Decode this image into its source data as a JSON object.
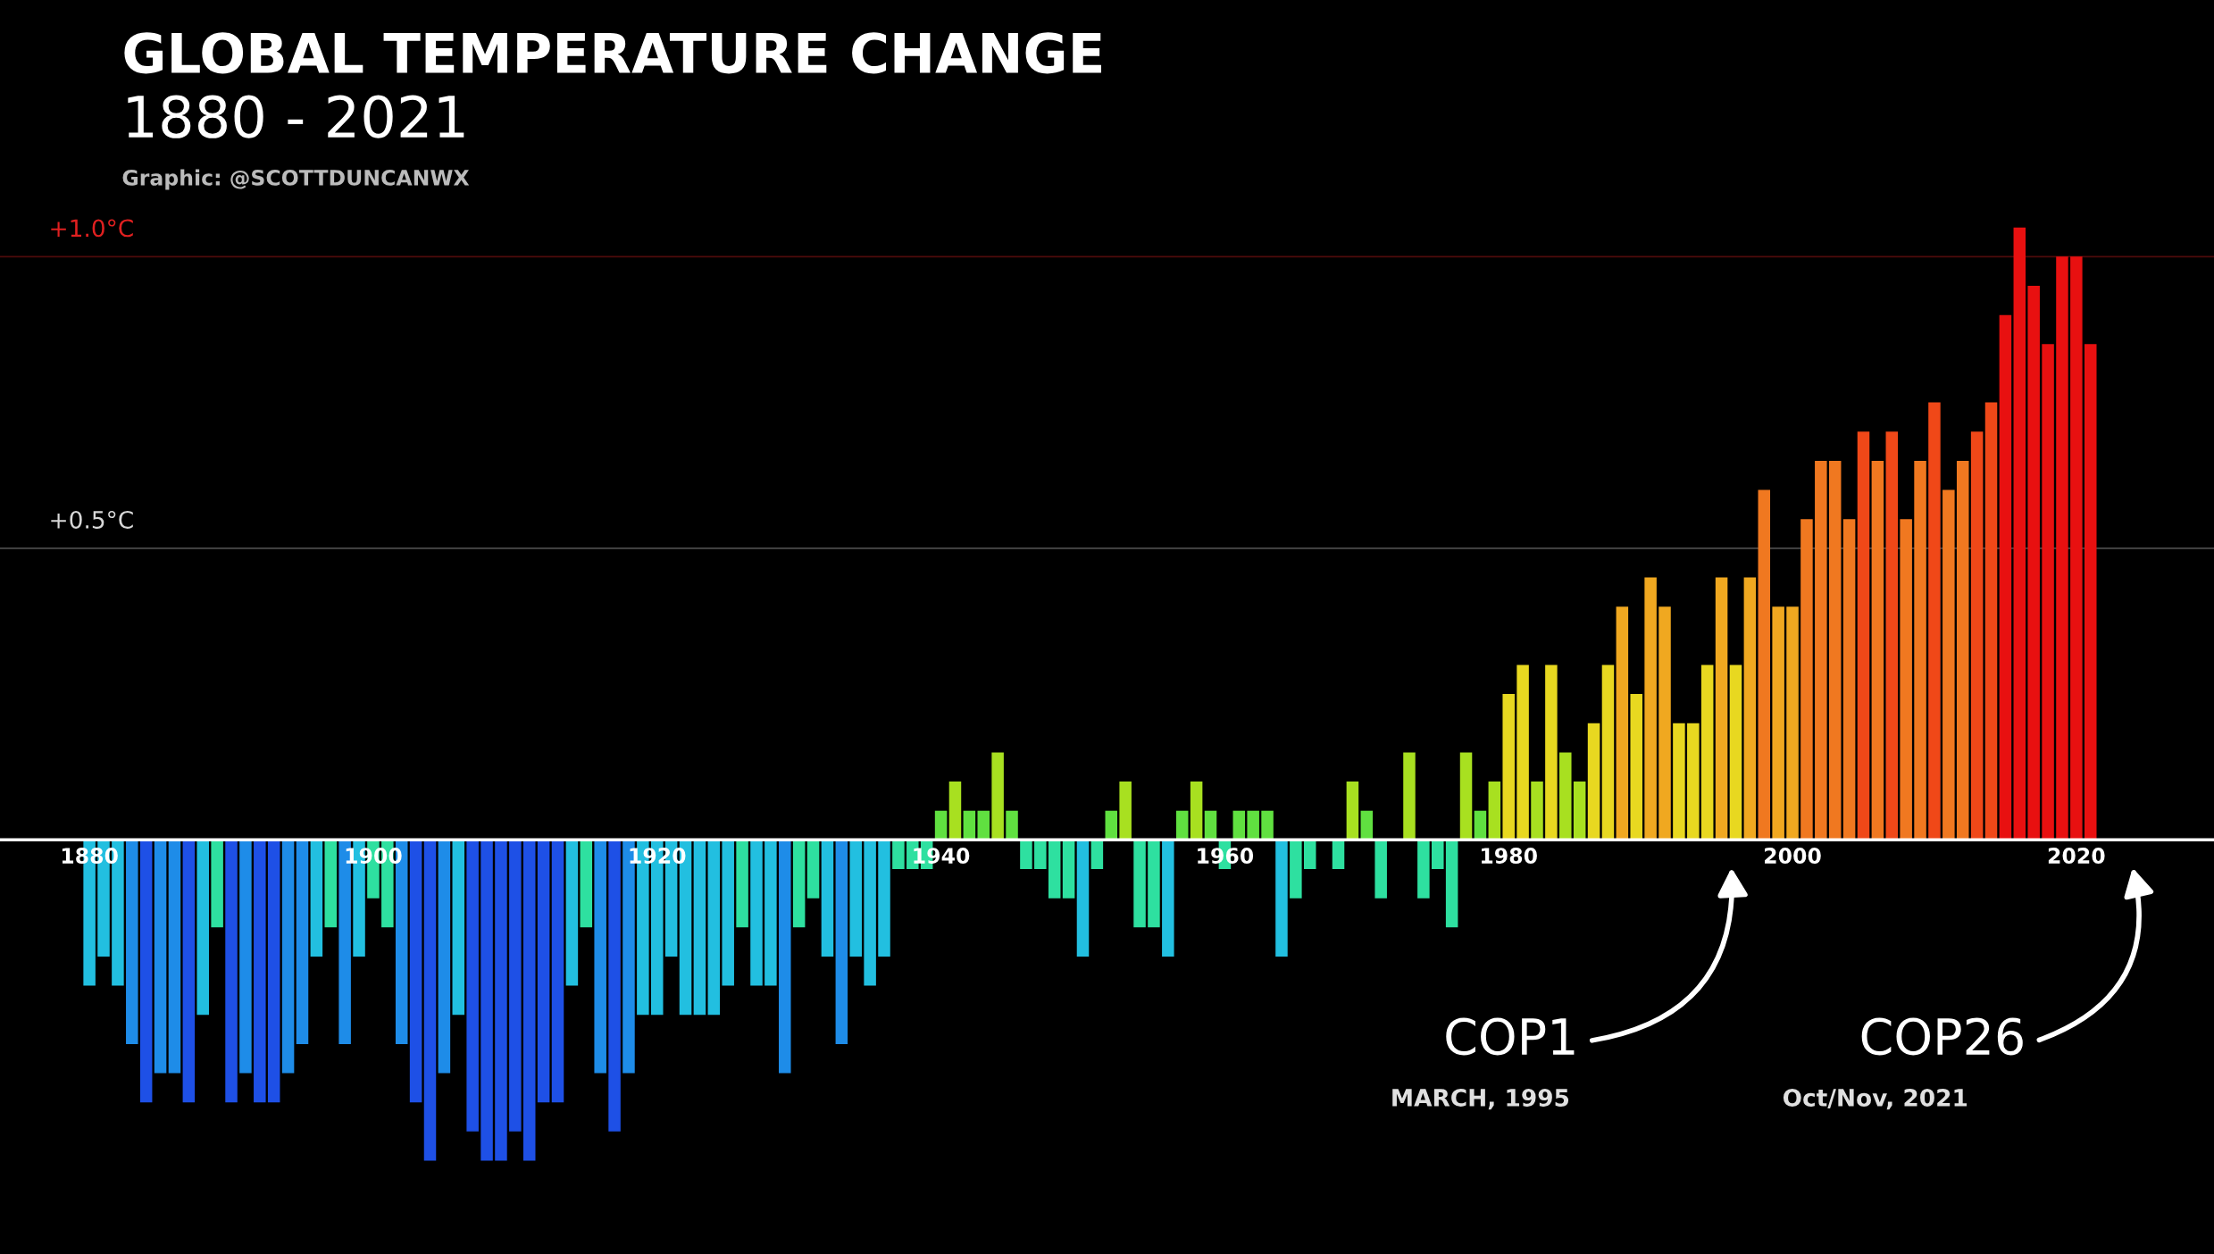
{
  "chart_data": {
    "type": "bar",
    "title": "GLOBAL TEMPERATURE CHANGE",
    "subtitle": "1880 - 2021",
    "x": [
      1880,
      1881,
      1882,
      1883,
      1884,
      1885,
      1886,
      1887,
      1888,
      1889,
      1890,
      1891,
      1892,
      1893,
      1894,
      1895,
      1896,
      1897,
      1898,
      1899,
      1900,
      1901,
      1902,
      1903,
      1904,
      1905,
      1906,
      1907,
      1908,
      1909,
      1910,
      1911,
      1912,
      1913,
      1914,
      1915,
      1916,
      1917,
      1918,
      1919,
      1920,
      1921,
      1922,
      1923,
      1924,
      1925,
      1926,
      1927,
      1928,
      1929,
      1930,
      1931,
      1932,
      1933,
      1934,
      1935,
      1936,
      1937,
      1938,
      1939,
      1940,
      1941,
      1942,
      1943,
      1944,
      1945,
      1946,
      1947,
      1948,
      1949,
      1950,
      1951,
      1952,
      1953,
      1954,
      1955,
      1956,
      1957,
      1958,
      1959,
      1960,
      1961,
      1962,
      1963,
      1964,
      1965,
      1966,
      1967,
      1968,
      1969,
      1970,
      1971,
      1972,
      1973,
      1974,
      1975,
      1976,
      1977,
      1978,
      1979,
      1980,
      1981,
      1982,
      1983,
      1984,
      1985,
      1986,
      1987,
      1988,
      1989,
      1990,
      1991,
      1992,
      1993,
      1994,
      1995,
      1996,
      1997,
      1998,
      1999,
      2000,
      2001,
      2002,
      2003,
      2004,
      2005,
      2006,
      2007,
      2008,
      2009,
      2010,
      2011,
      2012,
      2013,
      2014,
      2015,
      2016,
      2017,
      2018,
      2019,
      2020,
      2021
    ],
    "values": [
      -0.25,
      -0.2,
      -0.25,
      -0.35,
      -0.45,
      -0.4,
      -0.4,
      -0.45,
      -0.3,
      -0.15,
      -0.45,
      -0.4,
      -0.45,
      -0.45,
      -0.4,
      -0.35,
      -0.2,
      -0.15,
      -0.35,
      -0.2,
      -0.1,
      -0.15,
      -0.35,
      -0.45,
      -0.55,
      -0.4,
      -0.3,
      -0.5,
      -0.55,
      -0.55,
      -0.5,
      -0.55,
      -0.45,
      -0.45,
      -0.25,
      -0.15,
      -0.4,
      -0.5,
      -0.4,
      -0.3,
      -0.3,
      -0.2,
      -0.3,
      -0.3,
      -0.3,
      -0.25,
      -0.15,
      -0.25,
      -0.25,
      -0.4,
      -0.15,
      -0.1,
      -0.2,
      -0.35,
      -0.2,
      -0.25,
      -0.2,
      -0.05,
      -0.05,
      -0.05,
      0.05,
      0.1,
      0.05,
      0.05,
      0.15,
      0.05,
      -0.05,
      -0.05,
      -0.1,
      -0.1,
      -0.2,
      -0.05,
      0.05,
      0.1,
      -0.15,
      -0.15,
      -0.2,
      0.05,
      0.1,
      0.05,
      -0.05,
      0.05,
      0.05,
      0.05,
      -0.2,
      -0.1,
      -0.05,
      0.0,
      -0.05,
      0.1,
      0.05,
      -0.1,
      0.0,
      0.15,
      -0.1,
      -0.05,
      -0.15,
      0.15,
      0.05,
      0.1,
      0.25,
      0.3,
      0.1,
      0.3,
      0.15,
      0.1,
      0.2,
      0.3,
      0.4,
      0.25,
      0.45,
      0.4,
      0.2,
      0.2,
      0.3,
      0.45,
      0.3,
      0.45,
      0.6,
      0.4,
      0.4,
      0.55,
      0.65,
      0.65,
      0.55,
      0.7,
      0.65,
      0.7,
      0.55,
      0.65,
      0.75,
      0.6,
      0.65,
      0.7,
      0.75,
      0.9,
      1.05,
      0.95,
      0.85,
      1.0,
      1.0,
      0.85
    ],
    "colors": [
      "#22bfe0",
      "#22bfe0",
      "#22bfe0",
      "#1e8ce8",
      "#1e50e6",
      "#1e8ce8",
      "#1e8ce8",
      "#1e50e6",
      "#22bfe0",
      "#2ee0a0",
      "#1e50e6",
      "#1e8ce8",
      "#1e50e6",
      "#1e50e6",
      "#1e8ce8",
      "#1e8ce8",
      "#22bfe0",
      "#2ee0a0",
      "#1e8ce8",
      "#22bfe0",
      "#2ee0a0",
      "#2ee0a0",
      "#1e8ce8",
      "#1e50e6",
      "#1e50e6",
      "#1e8ce8",
      "#22bfe0",
      "#1e50e6",
      "#1e50e6",
      "#1e50e6",
      "#1e50e6",
      "#1e50e6",
      "#1e50e6",
      "#1e50e6",
      "#22bfe0",
      "#2ee0a0",
      "#1e8ce8",
      "#1e50e6",
      "#1e8ce8",
      "#22bfe0",
      "#22bfe0",
      "#22bfe0",
      "#22bfe0",
      "#22bfe0",
      "#22bfe0",
      "#22bfe0",
      "#2ee0a0",
      "#22bfe0",
      "#22bfe0",
      "#1e8ce8",
      "#2ee0a0",
      "#2ee0a0",
      "#22bfe0",
      "#1e8ce8",
      "#22bfe0",
      "#22bfe0",
      "#22bfe0",
      "#2ee0a0",
      "#2ee0a0",
      "#2ee0a0",
      "#60e040",
      "#a8e020",
      "#60e040",
      "#60e040",
      "#a8e020",
      "#60e040",
      "#2ee0a0",
      "#2ee0a0",
      "#2ee0a0",
      "#2ee0a0",
      "#22bfe0",
      "#2ee0a0",
      "#60e040",
      "#a8e020",
      "#2ee0a0",
      "#2ee0a0",
      "#22bfe0",
      "#60e040",
      "#a8e020",
      "#60e040",
      "#2ee0a0",
      "#60e040",
      "#60e040",
      "#60e040",
      "#22bfe0",
      "#2ee0a0",
      "#2ee0a0",
      "#60e040",
      "#2ee0a0",
      "#a8e020",
      "#60e040",
      "#2ee0a0",
      "#60e040",
      "#a8e020",
      "#2ee0a0",
      "#2ee0a0",
      "#2ee0a0",
      "#a8e020",
      "#60e040",
      "#a8e020",
      "#e8d820",
      "#e8d820",
      "#a8e020",
      "#e8d820",
      "#a8e020",
      "#a8e020",
      "#e8d820",
      "#e8d820",
      "#f0a820",
      "#e8d820",
      "#f0a820",
      "#f0a820",
      "#e8d820",
      "#e8d820",
      "#e8d820",
      "#f0a820",
      "#e8d820",
      "#f0a820",
      "#f07820",
      "#f0a820",
      "#f0a820",
      "#f07820",
      "#f07820",
      "#f07820",
      "#f07820",
      "#f04818",
      "#f07820",
      "#f04818",
      "#f07820",
      "#f07820",
      "#f04818",
      "#f07820",
      "#f07820",
      "#f04818",
      "#f04818",
      "#e81010",
      "#e81010",
      "#e81010",
      "#e81010",
      "#e81010",
      "#e81010",
      "#e81010"
    ],
    "xlim": [
      1873.7,
      2029.7
    ],
    "ylim": [
      -0.71,
      1.44
    ],
    "xticks": [
      1880,
      1900,
      1920,
      1940,
      1960,
      1980,
      2000,
      2020
    ],
    "tick_labels": "x",
    "ref_lines": [
      {
        "axis": "y",
        "value": 0.5,
        "label": "+0.5°C",
        "color": "#d8d8d8"
      },
      {
        "axis": "y",
        "value": 1.0,
        "label": "+1.0°C",
        "color": "#e02020"
      }
    ],
    "annotations": [
      "COP1",
      "MARCH, 1995",
      "COP26",
      "Oct/Nov, 2021",
      "Graphic: @SCOTTDUNCANWX"
    ],
    "legend": false,
    "grid": false
  }
}
